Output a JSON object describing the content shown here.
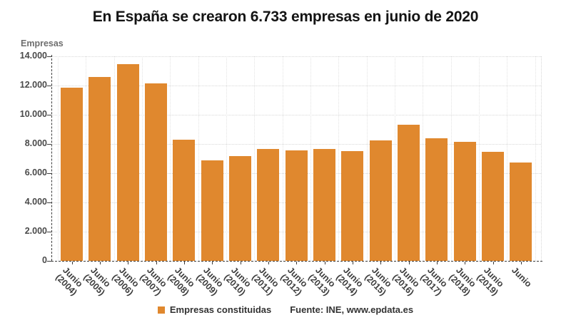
{
  "title": "En España se crearon 6.733 empresas en junio de 2020",
  "chart_data": {
    "type": "bar",
    "title": "En España se crearon 6.733 empresas en junio de 2020",
    "categories": [
      "Junio (2004)",
      "Junio (2005)",
      "Junio (2006)",
      "Junio (2007)",
      "Junio (2008)",
      "Junio (2009)",
      "Junio (2010)",
      "Junio (2011)",
      "Junio (2012)",
      "Junio (2013)",
      "Junio (2014)",
      "Junio (2015)",
      "Junio (2016)",
      "Junio (2017)",
      "Junio (2018)",
      "Junio (2019)",
      "Junio"
    ],
    "values": [
      11850,
      12600,
      13450,
      12150,
      8280,
      6890,
      7150,
      7680,
      7560,
      7650,
      7500,
      8260,
      9310,
      8370,
      8160,
      7440,
      6733
    ],
    "series_name": "Empresas constituidas",
    "xlabel": "",
    "ylabel": "Empresas",
    "ylim": [
      0,
      14000
    ],
    "ytick_step": 2000,
    "grid": true,
    "legend_position": "bottom",
    "bar_color": "#e0882e"
  },
  "axes": {
    "y_title": "Empresas",
    "y_ticks": [
      "0",
      "2.000",
      "4.000",
      "6.000",
      "8.000",
      "10.000",
      "12.000",
      "14.000"
    ],
    "x_labels": [
      {
        "line1": "Junio",
        "line2": "(2004)"
      },
      {
        "line1": "Junio",
        "line2": "(2005)"
      },
      {
        "line1": "Junio",
        "line2": "(2006)"
      },
      {
        "line1": "Junio",
        "line2": "(2007)"
      },
      {
        "line1": "Junio",
        "line2": "(2008)"
      },
      {
        "line1": "Junio",
        "line2": "(2009)"
      },
      {
        "line1": "Junio",
        "line2": "(2010)"
      },
      {
        "line1": "Junio",
        "line2": "(2011)"
      },
      {
        "line1": "Junio",
        "line2": "(2012)"
      },
      {
        "line1": "Junio",
        "line2": "(2013)"
      },
      {
        "line1": "Junio",
        "line2": "(2014)"
      },
      {
        "line1": "Junio",
        "line2": "(2015)"
      },
      {
        "line1": "Junio",
        "line2": "(2016)"
      },
      {
        "line1": "Junio",
        "line2": "(2017)"
      },
      {
        "line1": "Junio",
        "line2": "(2018)"
      },
      {
        "line1": "Junio",
        "line2": "(2019)"
      },
      {
        "line1": "Junio",
        "line2": ""
      }
    ]
  },
  "legend": {
    "series_label": "Empresas constituidas",
    "source": "Fuente: INE, www.epdata.es"
  },
  "colors": {
    "bar": "#e0882e",
    "title": "#141414",
    "axis": "#3c3c3c",
    "grid": "#d8d8d8",
    "tick_text": "#4a4a4a"
  }
}
